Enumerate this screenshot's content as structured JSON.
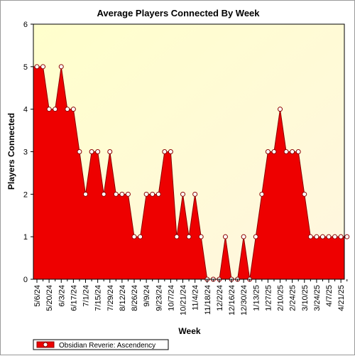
{
  "chart_data": {
    "type": "area",
    "title": "Average Players Connected By Week",
    "xlabel": "Week",
    "ylabel": "Players Connected",
    "ylim": [
      0,
      6
    ],
    "yticks": [
      0,
      1,
      2,
      3,
      4,
      5,
      6
    ],
    "grid": false,
    "legend_position": "bottom-left",
    "colors": {
      "fill": "#ee0000",
      "line": "#8b0000",
      "marker_fill": "#ffffff",
      "marker_stroke": "#8b0000",
      "bg_top_left": "#ffffcc",
      "bg_bottom_right": "#fff6e0"
    },
    "x_tick_labels": [
      "5/6/24",
      "5/20/24",
      "6/3/24",
      "6/17/24",
      "7/1/24",
      "7/15/24",
      "7/29/24",
      "8/12/24",
      "8/26/24",
      "9/9/24",
      "9/23/24",
      "10/7/24",
      "10/21/24",
      "11/4/24",
      "11/18/24",
      "12/2/24",
      "12/16/24",
      "12/30/24",
      "1/13/25",
      "1/27/25",
      "2/10/25",
      "2/24/25",
      "3/10/25",
      "3/24/25",
      "4/7/25",
      "4/21/25"
    ],
    "series": [
      {
        "name": "Obsidian Reverie: Ascendency",
        "values": [
          5,
          5,
          4,
          4,
          5,
          4,
          4,
          3,
          2,
          3,
          3,
          2,
          3,
          2,
          2,
          2,
          1,
          1,
          2,
          2,
          2,
          3,
          3,
          1,
          2,
          1,
          2,
          1,
          0,
          0,
          0,
          1,
          0,
          0,
          1,
          0,
          1,
          2,
          3,
          3,
          4,
          3,
          3,
          3,
          2,
          1,
          1,
          1,
          1,
          1,
          1,
          1
        ]
      }
    ]
  }
}
